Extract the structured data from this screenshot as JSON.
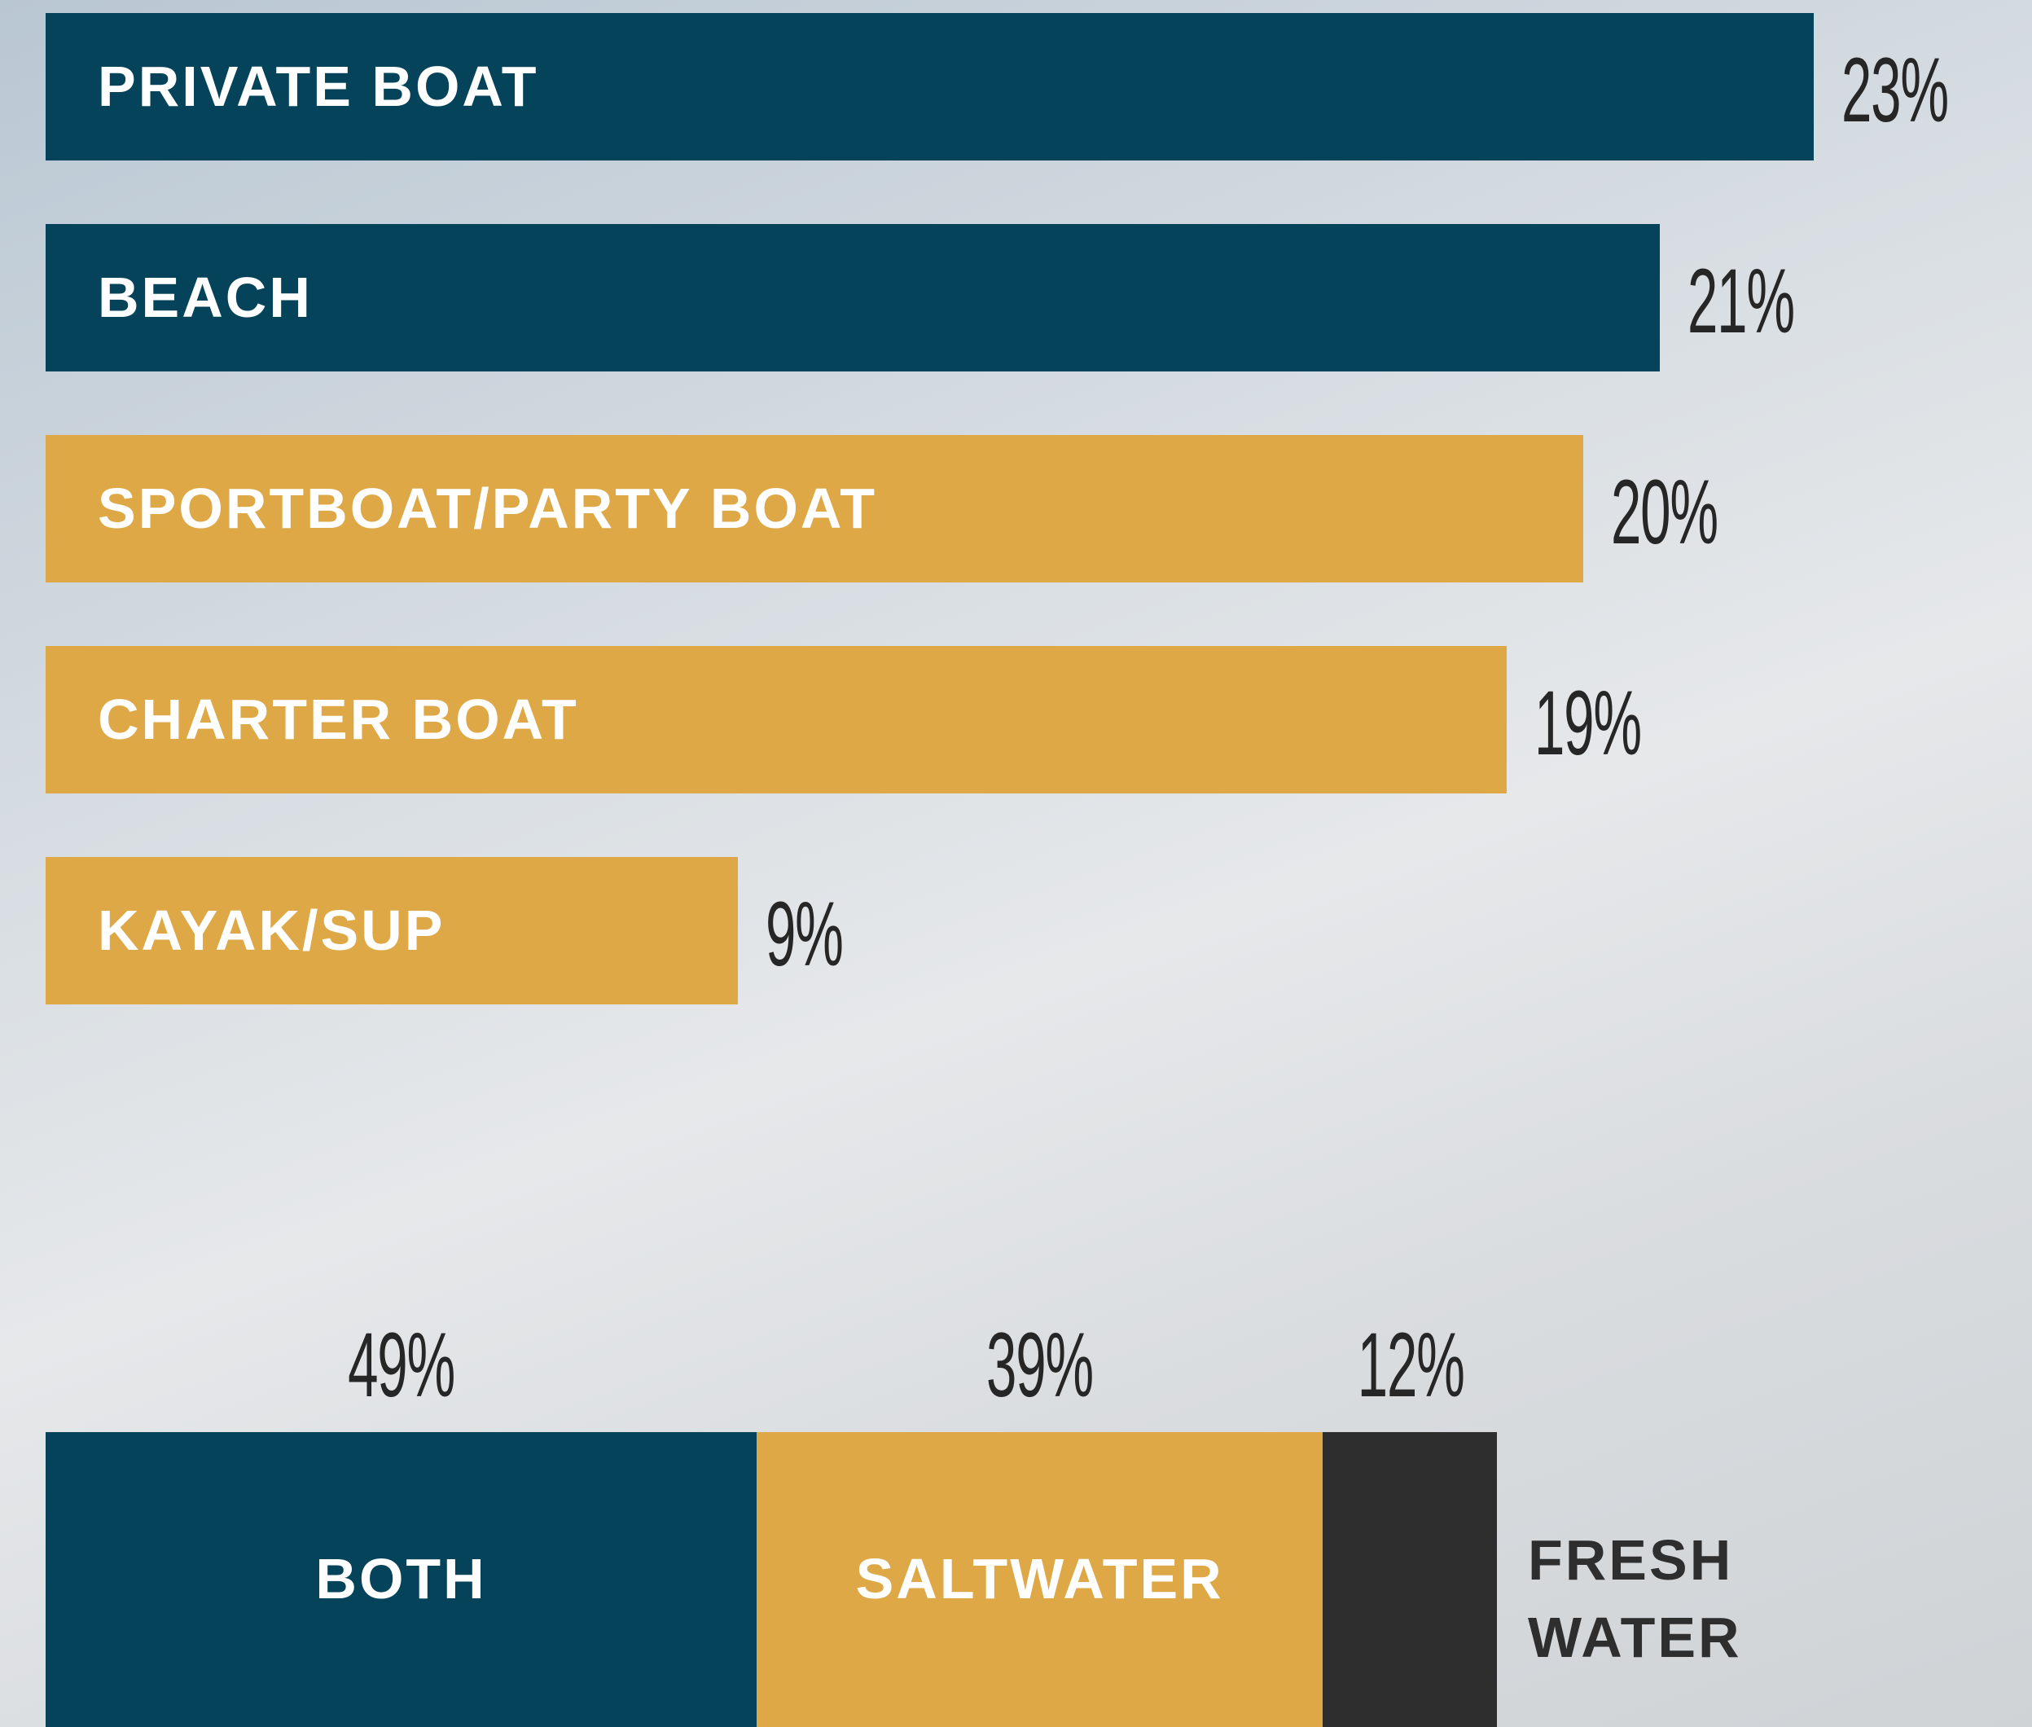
{
  "chart_data": [
    {
      "type": "bar",
      "orientation": "horizontal",
      "categories": [
        "PRIVATE BOAT",
        "BEACH",
        "SPORTBOAT/PARTY BOAT",
        "CHARTER BOAT",
        "KAYAK/SUP"
      ],
      "values": [
        23,
        21,
        20,
        19,
        9
      ],
      "value_labels": [
        "23%",
        "21%",
        "20%",
        "19%",
        "9%"
      ],
      "colors": [
        "#04435a",
        "#04435a",
        "#dea846",
        "#dea846",
        "#dea846"
      ]
    },
    {
      "type": "stacked-bar",
      "orientation": "horizontal",
      "series": [
        {
          "name": "BOTH",
          "color": "#04435a",
          "values": [
            49
          ],
          "value_labels": [
            "49%"
          ]
        },
        {
          "name": "SALTWATER",
          "color": "#dea846",
          "values": [
            39
          ],
          "value_labels": [
            "39%"
          ]
        },
        {
          "name": "FRESH WATER",
          "color": "#2e2e2e",
          "values": [
            12
          ],
          "value_labels": [
            "12%"
          ]
        }
      ]
    }
  ]
}
